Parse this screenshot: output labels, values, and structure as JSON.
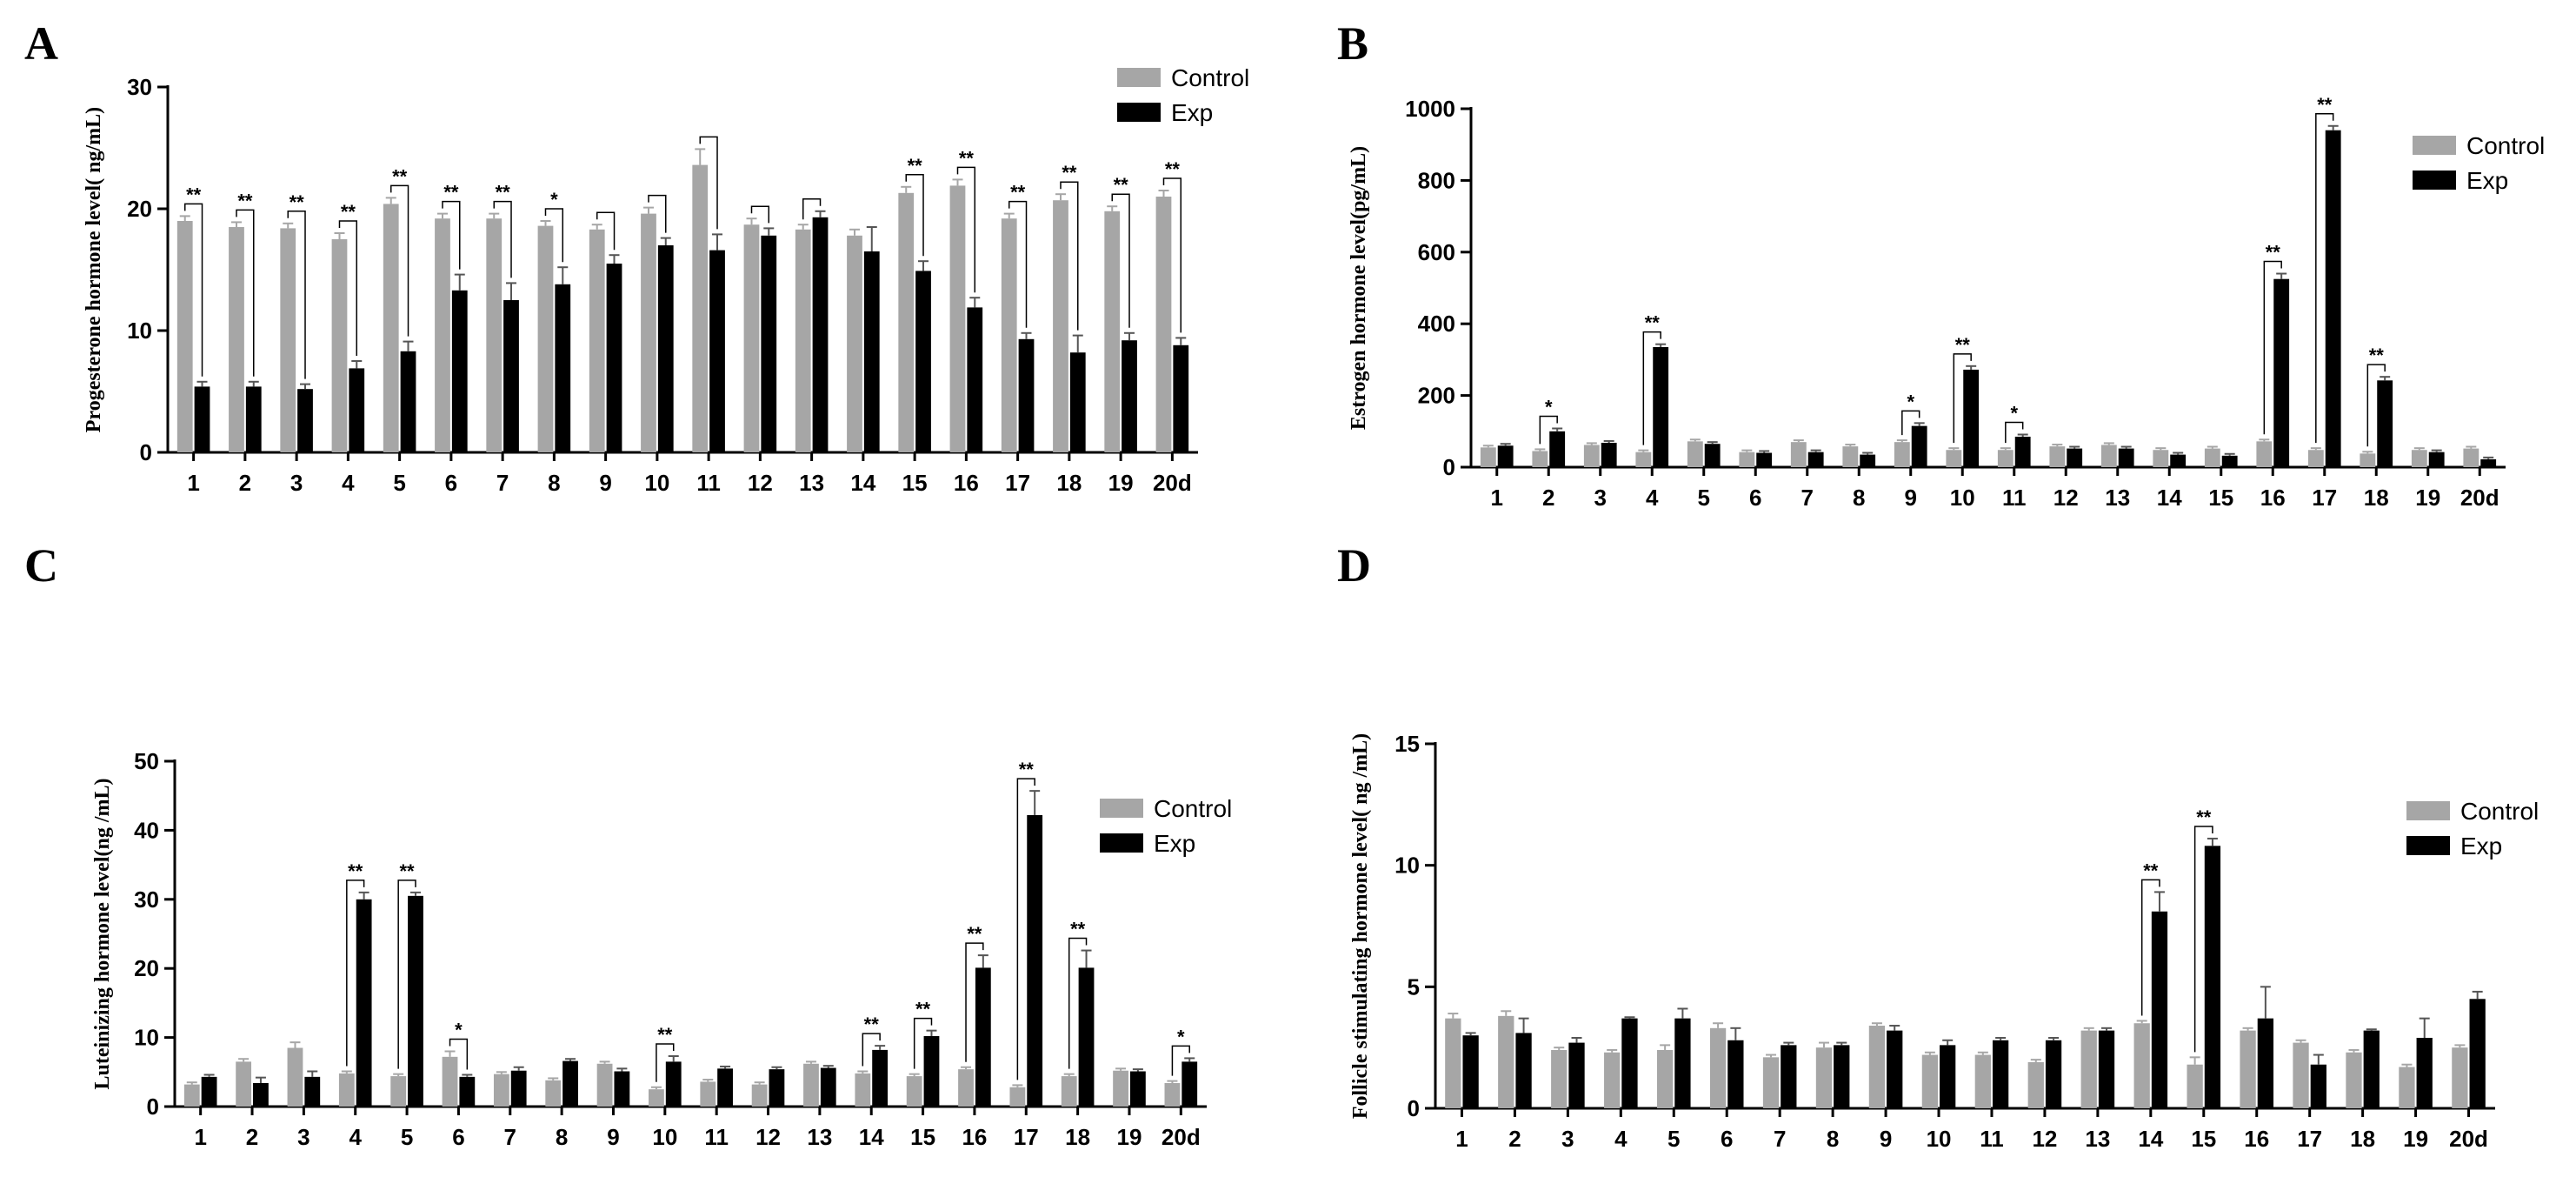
{
  "colors": {
    "control": "#a6a6a6",
    "exp": "#000000",
    "axis": "#000000"
  },
  "legend": {
    "control": "Control",
    "exp": "Exp"
  },
  "chart_data": [
    {
      "panel": "A",
      "type": "bar",
      "ylabel": "Progesterone hormone level( ng/mL)",
      "ylim": [
        0,
        30
      ],
      "yticks": [
        0,
        10,
        20,
        30
      ],
      "categories": [
        "1",
        "2",
        "3",
        "4",
        "5",
        "6",
        "7",
        "8",
        "9",
        "10",
        "11",
        "12",
        "13",
        "14",
        "15",
        "16",
        "17",
        "18",
        "19",
        "20d"
      ],
      "series": [
        {
          "name": "Control",
          "values": [
            19.0,
            18.5,
            18.4,
            17.5,
            20.4,
            19.2,
            19.2,
            18.6,
            18.3,
            19.6,
            23.6,
            18.7,
            18.3,
            17.8,
            21.3,
            21.9,
            19.2,
            20.7,
            19.8,
            21.0
          ],
          "errors": [
            0.4,
            0.4,
            0.4,
            0.5,
            0.5,
            0.4,
            0.4,
            0.4,
            0.4,
            0.5,
            1.3,
            0.5,
            0.4,
            0.5,
            0.5,
            0.5,
            0.4,
            0.5,
            0.4,
            0.5
          ]
        },
        {
          "name": "Exp",
          "values": [
            5.4,
            5.4,
            5.2,
            6.9,
            8.3,
            13.3,
            12.5,
            13.8,
            15.5,
            17.0,
            16.6,
            17.8,
            19.3,
            16.5,
            14.9,
            11.9,
            9.3,
            8.2,
            9.2,
            8.8
          ],
          "errors": [
            0.4,
            0.4,
            0.4,
            0.6,
            0.8,
            1.3,
            1.4,
            1.4,
            0.7,
            0.6,
            1.3,
            0.6,
            0.5,
            2.0,
            0.8,
            0.8,
            0.5,
            1.4,
            0.6,
            0.6
          ]
        }
      ],
      "significance": [
        "**",
        "**",
        "**",
        "**",
        "**",
        "**",
        "**",
        "*",
        "",
        "",
        "",
        "",
        "",
        "",
        "**",
        "**",
        "**",
        "**",
        "**",
        "**"
      ]
    },
    {
      "panel": "B",
      "type": "bar",
      "ylabel": "Estrogen hormone level(pg/mL)",
      "ylim": [
        0,
        1000
      ],
      "yticks": [
        0,
        200,
        400,
        600,
        800,
        1000
      ],
      "categories": [
        "1",
        "2",
        "3",
        "4",
        "5",
        "6",
        "7",
        "8",
        "9",
        "10",
        "11",
        "12",
        "13",
        "14",
        "15",
        "16",
        "17",
        "18",
        "19",
        "20d"
      ],
      "series": [
        {
          "name": "Control",
          "values": [
            55,
            45,
            62,
            42,
            72,
            42,
            70,
            58,
            70,
            48,
            48,
            58,
            62,
            48,
            52,
            72,
            48,
            38,
            48,
            52
          ],
          "errors": [
            5,
            5,
            5,
            5,
            5,
            5,
            5,
            5,
            5,
            5,
            5,
            5,
            5,
            5,
            5,
            5,
            5,
            5,
            5,
            5
          ]
        },
        {
          "name": "Exp",
          "values": [
            60,
            100,
            68,
            335,
            65,
            40,
            42,
            35,
            115,
            272,
            85,
            52,
            52,
            35,
            32,
            525,
            940,
            242,
            42,
            22
          ],
          "errors": [
            5,
            8,
            5,
            8,
            5,
            5,
            5,
            5,
            8,
            10,
            6,
            5,
            5,
            5,
            5,
            15,
            12,
            10,
            5,
            5
          ]
        }
      ],
      "significance": [
        "",
        "*",
        "",
        "**",
        "",
        "",
        "",
        "",
        "*",
        "**",
        "*",
        "",
        "",
        "",
        "",
        "**",
        "**",
        "**",
        "",
        ""
      ]
    },
    {
      "panel": "C",
      "type": "bar",
      "ylabel": "Luteinizing hormone level(ng /mL)",
      "ylim": [
        0,
        50
      ],
      "yticks": [
        0,
        10,
        20,
        30,
        40,
        50
      ],
      "categories": [
        "1",
        "2",
        "3",
        "4",
        "5",
        "6",
        "7",
        "8",
        "9",
        "10",
        "11",
        "12",
        "13",
        "14",
        "15",
        "16",
        "17",
        "18",
        "19",
        "20d"
      ],
      "series": [
        {
          "name": "Control",
          "values": [
            3.2,
            6.5,
            8.5,
            4.8,
            4.4,
            7.2,
            4.7,
            3.8,
            6.2,
            2.5,
            3.6,
            3.2,
            6.2,
            4.8,
            4.4,
            5.4,
            2.8,
            4.4,
            5.2,
            3.4
          ],
          "errors": [
            0.3,
            0.4,
            0.8,
            0.3,
            0.3,
            0.8,
            0.3,
            0.3,
            0.3,
            0.3,
            0.3,
            0.3,
            0.3,
            0.3,
            0.3,
            0.3,
            0.3,
            0.3,
            0.3,
            0.3
          ]
        },
        {
          "name": "Exp",
          "values": [
            4.3,
            3.4,
            4.3,
            30.0,
            30.5,
            4.3,
            5.2,
            6.6,
            5.1,
            6.5,
            5.5,
            5.4,
            5.6,
            8.2,
            10.2,
            20.1,
            42.2,
            20.1,
            5.1,
            6.5
          ],
          "errors": [
            0.3,
            0.8,
            0.8,
            1.0,
            0.5,
            0.3,
            0.5,
            0.3,
            0.4,
            0.8,
            0.3,
            0.3,
            0.3,
            0.6,
            0.8,
            1.8,
            3.5,
            2.5,
            0.3,
            0.5
          ]
        }
      ],
      "significance": [
        "",
        "",
        "",
        "**",
        "**",
        "*",
        "",
        "",
        "",
        "**",
        "",
        "",
        "",
        "**",
        "**",
        "**",
        "**",
        "**",
        "",
        "*"
      ]
    },
    {
      "panel": "D",
      "type": "bar",
      "ylabel": "Follicle stimulating hormone level( ng /mL)",
      "ylim": [
        0,
        15
      ],
      "yticks": [
        0,
        5,
        10,
        15
      ],
      "categories": [
        "1",
        "2",
        "3",
        "4",
        "5",
        "6",
        "7",
        "8",
        "9",
        "10",
        "11",
        "12",
        "13",
        "14",
        "15",
        "16",
        "17",
        "18",
        "19",
        "20d"
      ],
      "series": [
        {
          "name": "Control",
          "values": [
            3.7,
            3.8,
            2.4,
            2.3,
            2.4,
            3.3,
            2.1,
            2.5,
            3.4,
            2.2,
            2.2,
            1.9,
            3.2,
            3.5,
            1.8,
            3.2,
            2.7,
            2.3,
            1.7,
            2.5
          ],
          "errors": [
            0.2,
            0.2,
            0.1,
            0.1,
            0.2,
            0.2,
            0.1,
            0.2,
            0.1,
            0.1,
            0.1,
            0.1,
            0.1,
            0.1,
            0.3,
            0.1,
            0.1,
            0.1,
            0.1,
            0.1
          ]
        },
        {
          "name": "Exp",
          "values": [
            3.0,
            3.1,
            2.7,
            3.7,
            3.7,
            2.8,
            2.6,
            2.6,
            3.2,
            2.6,
            2.8,
            2.8,
            3.2,
            8.1,
            10.8,
            3.7,
            1.8,
            3.2,
            2.9,
            4.5
          ],
          "errors": [
            0.1,
            0.6,
            0.2,
            0.05,
            0.4,
            0.5,
            0.1,
            0.1,
            0.2,
            0.2,
            0.1,
            0.1,
            0.1,
            0.8,
            0.3,
            1.3,
            0.4,
            0.05,
            0.8,
            0.3
          ]
        }
      ],
      "significance": [
        "",
        "",
        "",
        "",
        "",
        "",
        "",
        "",
        "",
        "",
        "",
        "",
        "",
        "**",
        "**",
        "",
        "",
        "",
        "",
        ""
      ]
    }
  ]
}
